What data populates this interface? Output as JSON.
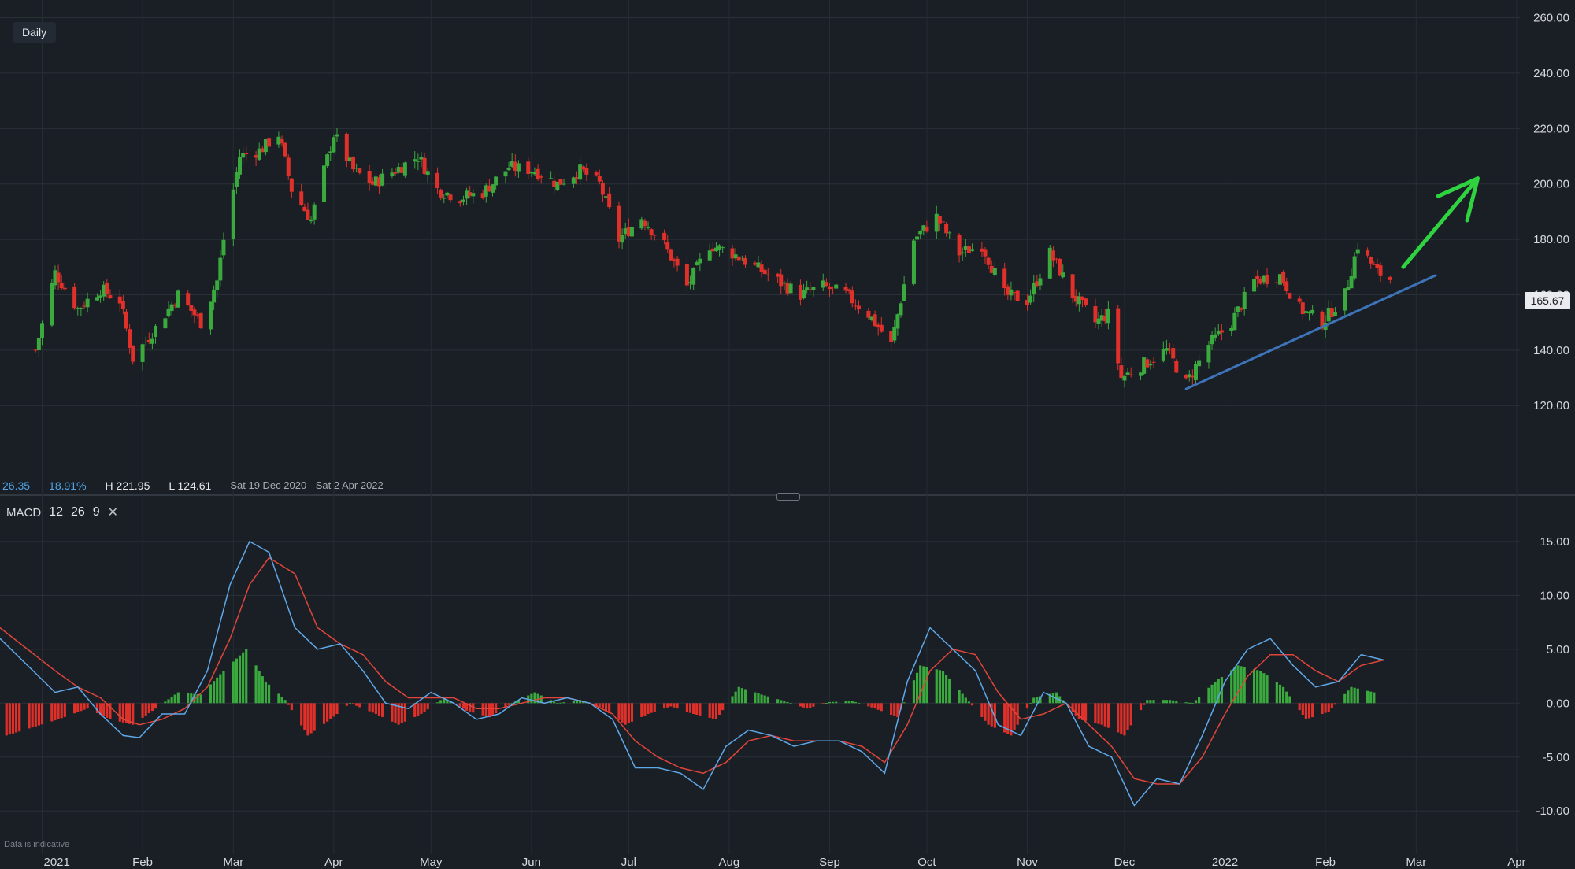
{
  "header": {
    "interval": "Daily"
  },
  "stats": {
    "value_a": "26.35",
    "value_pct": "18.91%",
    "high": "H 221.95",
    "low": "L 124.61",
    "range": "Sat 19 Dec 2020 - Sat 2 Apr 2022"
  },
  "macd_header": {
    "name": "MACD",
    "fast": "12",
    "slow": "26",
    "signal": "9",
    "close_glyph": "✕"
  },
  "footer_note": "Data is indicative",
  "last_price_label": "165.67",
  "chart_data": [
    {
      "type": "candlestick",
      "title": "",
      "interval": "Daily",
      "date_range": [
        "2020-12-19",
        "2022-04-02"
      ],
      "x_tick_labels": [
        "2021",
        "Feb",
        "Mar",
        "Apr",
        "May",
        "Jun",
        "Jul",
        "Aug",
        "Sep",
        "Oct",
        "Nov",
        "Dec",
        "2022",
        "Feb",
        "Mar",
        "Apr"
      ],
      "x_tick_dates": [
        "2021-01-01",
        "2021-02-01",
        "2021-03-01",
        "2021-04-01",
        "2021-05-01",
        "2021-06-01",
        "2021-07-01",
        "2021-08-01",
        "2021-09-01",
        "2021-10-01",
        "2021-11-01",
        "2021-12-01",
        "2022-01-01",
        "2022-02-01",
        "2022-03-01",
        "2022-04-01"
      ],
      "y_tick_labels": [
        "260.00",
        "240.00",
        "220.00",
        "200.00",
        "180.00",
        "160.00",
        "140.00",
        "120.00"
      ],
      "ylim": [
        105,
        263
      ],
      "close_path": [
        [
          "2020-12-30",
          140
        ],
        [
          "2021-01-05",
          168
        ],
        [
          "2021-01-12",
          155
        ],
        [
          "2021-01-19",
          162
        ],
        [
          "2021-01-25",
          158
        ],
        [
          "2021-01-29",
          137
        ],
        [
          "2021-02-05",
          148
        ],
        [
          "2021-02-12",
          160
        ],
        [
          "2021-02-19",
          150
        ],
        [
          "2021-02-24",
          165
        ],
        [
          "2021-02-26",
          180
        ],
        [
          "2021-03-03",
          210
        ],
        [
          "2021-03-09",
          212
        ],
        [
          "2021-03-15",
          218
        ],
        [
          "2021-03-19",
          198
        ],
        [
          "2021-03-25",
          187
        ],
        [
          "2021-04-01",
          218
        ],
        [
          "2021-04-07",
          205
        ],
        [
          "2021-04-13",
          200
        ],
        [
          "2021-04-20",
          205
        ],
        [
          "2021-04-27",
          210
        ],
        [
          "2021-05-03",
          198
        ],
        [
          "2021-05-10",
          195
        ],
        [
          "2021-05-17",
          197
        ],
        [
          "2021-05-25",
          206
        ],
        [
          "2021-06-02",
          205
        ],
        [
          "2021-06-09",
          200
        ],
        [
          "2021-06-16",
          205
        ],
        [
          "2021-06-22",
          200
        ],
        [
          "2021-06-28",
          180
        ],
        [
          "2021-07-05",
          188
        ],
        [
          "2021-07-12",
          178
        ],
        [
          "2021-07-19",
          163
        ],
        [
          "2021-07-26",
          178
        ],
        [
          "2021-08-02",
          175
        ],
        [
          "2021-08-09",
          170
        ],
        [
          "2021-08-16",
          165
        ],
        [
          "2021-08-23",
          160
        ],
        [
          "2021-08-30",
          163
        ],
        [
          "2021-09-06",
          160
        ],
        [
          "2021-09-13",
          153
        ],
        [
          "2021-09-20",
          142
        ],
        [
          "2021-09-27",
          180
        ],
        [
          "2021-10-04",
          188
        ],
        [
          "2021-10-11",
          175
        ],
        [
          "2021-10-18",
          178
        ],
        [
          "2021-10-25",
          160
        ],
        [
          "2021-11-01",
          158
        ],
        [
          "2021-11-08",
          175
        ],
        [
          "2021-11-15",
          160
        ],
        [
          "2021-11-22",
          150
        ],
        [
          "2021-11-26",
          153
        ],
        [
          "2021-11-30",
          130
        ],
        [
          "2021-12-07",
          135
        ],
        [
          "2021-12-14",
          140
        ],
        [
          "2021-12-20",
          128
        ],
        [
          "2021-12-27",
          142
        ],
        [
          "2022-01-03",
          150
        ],
        [
          "2022-01-10",
          165
        ],
        [
          "2022-01-18",
          167
        ],
        [
          "2022-01-24",
          155
        ],
        [
          "2022-01-31",
          150
        ],
        [
          "2022-02-07",
          160
        ],
        [
          "2022-02-11",
          178
        ],
        [
          "2022-02-17",
          168
        ],
        [
          "2022-02-21",
          165.67
        ]
      ],
      "high": 221.95,
      "low": 124.61,
      "last_price": 165.67,
      "colors": {
        "up": "#3aa93e",
        "down": "#e0302a",
        "background": "#1a1f26"
      },
      "annotations": [
        {
          "type": "trendline",
          "from": [
            "2021-12-20",
            126
          ],
          "to": [
            "2022-03-07",
            167
          ],
          "color": "#3d73b8"
        },
        {
          "type": "arrow",
          "from": [
            "2022-02-25",
            170
          ],
          "to": [
            "2022-03-20",
            202
          ],
          "color": "#2fd33f"
        },
        {
          "type": "price_line",
          "value": 165.67
        }
      ]
    },
    {
      "type": "macd",
      "params": [
        12,
        26,
        9
      ],
      "y_tick_labels": [
        "15.00",
        "10.00",
        "5.00",
        "0.00",
        "-5.00",
        "-10.00"
      ],
      "ylim": [
        -14,
        18.5
      ],
      "macd_line": [
        [
          "2020-12-19",
          6
        ],
        [
          "2021-01-05",
          1
        ],
        [
          "2021-01-12",
          1.5
        ],
        [
          "2021-01-19",
          -1
        ],
        [
          "2021-01-26",
          -3
        ],
        [
          "2021-01-31",
          -3.2
        ],
        [
          "2021-02-07",
          -1
        ],
        [
          "2021-02-14",
          -1
        ],
        [
          "2021-02-21",
          3
        ],
        [
          "2021-02-28",
          11
        ],
        [
          "2021-03-06",
          15
        ],
        [
          "2021-03-12",
          14
        ],
        [
          "2021-03-20",
          7
        ],
        [
          "2021-03-27",
          5
        ],
        [
          "2021-04-03",
          5.5
        ],
        [
          "2021-04-10",
          3
        ],
        [
          "2021-04-17",
          0
        ],
        [
          "2021-04-24",
          -0.5
        ],
        [
          "2021-05-01",
          1
        ],
        [
          "2021-05-08",
          0
        ],
        [
          "2021-05-15",
          -1.5
        ],
        [
          "2021-05-22",
          -1
        ],
        [
          "2021-05-29",
          0.5
        ],
        [
          "2021-06-05",
          0
        ],
        [
          "2021-06-12",
          0.5
        ],
        [
          "2021-06-19",
          0
        ],
        [
          "2021-06-26",
          -1.5
        ],
        [
          "2021-07-03",
          -6
        ],
        [
          "2021-07-10",
          -6
        ],
        [
          "2021-07-17",
          -6.5
        ],
        [
          "2021-07-24",
          -8
        ],
        [
          "2021-07-31",
          -4
        ],
        [
          "2021-08-07",
          -2.5
        ],
        [
          "2021-08-14",
          -3
        ],
        [
          "2021-08-21",
          -4
        ],
        [
          "2021-08-28",
          -3.5
        ],
        [
          "2021-09-04",
          -3.5
        ],
        [
          "2021-09-11",
          -4.5
        ],
        [
          "2021-09-18",
          -6.5
        ],
        [
          "2021-09-25",
          2
        ],
        [
          "2021-10-02",
          7
        ],
        [
          "2021-10-09",
          5
        ],
        [
          "2021-10-16",
          3
        ],
        [
          "2021-10-23",
          -2
        ],
        [
          "2021-10-30",
          -3
        ],
        [
          "2021-11-06",
          1
        ],
        [
          "2021-11-13",
          0
        ],
        [
          "2021-11-20",
          -4
        ],
        [
          "2021-11-27",
          -5
        ],
        [
          "2021-12-04",
          -9.5
        ],
        [
          "2021-12-11",
          -7
        ],
        [
          "2021-12-18",
          -7.5
        ],
        [
          "2021-12-25",
          -3
        ],
        [
          "2022-01-01",
          2
        ],
        [
          "2022-01-08",
          5
        ],
        [
          "2022-01-15",
          6
        ],
        [
          "2022-01-22",
          3.5
        ],
        [
          "2022-01-29",
          1.5
        ],
        [
          "2022-02-05",
          2
        ],
        [
          "2022-02-12",
          4.5
        ],
        [
          "2022-02-19",
          4
        ]
      ],
      "signal_line": [
        [
          "2020-12-19",
          7
        ],
        [
          "2021-01-05",
          3
        ],
        [
          "2021-01-12",
          1.5
        ],
        [
          "2021-01-19",
          0.5
        ],
        [
          "2021-01-26",
          -1.5
        ],
        [
          "2021-01-31",
          -2
        ],
        [
          "2021-02-07",
          -1.5
        ],
        [
          "2021-02-14",
          -0.5
        ],
        [
          "2021-02-21",
          1.5
        ],
        [
          "2021-02-28",
          6
        ],
        [
          "2021-03-06",
          11
        ],
        [
          "2021-03-12",
          13.5
        ],
        [
          "2021-03-20",
          12
        ],
        [
          "2021-03-27",
          7
        ],
        [
          "2021-04-03",
          5.5
        ],
        [
          "2021-04-10",
          4.5
        ],
        [
          "2021-04-17",
          2
        ],
        [
          "2021-04-24",
          0.5
        ],
        [
          "2021-05-01",
          0.5
        ],
        [
          "2021-05-08",
          0.5
        ],
        [
          "2021-05-15",
          -0.5
        ],
        [
          "2021-05-22",
          -0.5
        ],
        [
          "2021-05-29",
          0
        ],
        [
          "2021-06-05",
          0.5
        ],
        [
          "2021-06-12",
          0.5
        ],
        [
          "2021-06-19",
          0
        ],
        [
          "2021-06-26",
          -1
        ],
        [
          "2021-07-03",
          -3.5
        ],
        [
          "2021-07-10",
          -5
        ],
        [
          "2021-07-17",
          -6
        ],
        [
          "2021-07-24",
          -6.5
        ],
        [
          "2021-07-31",
          -5.5
        ],
        [
          "2021-08-07",
          -3.5
        ],
        [
          "2021-08-14",
          -3
        ],
        [
          "2021-08-21",
          -3.5
        ],
        [
          "2021-08-28",
          -3.5
        ],
        [
          "2021-09-04",
          -3.5
        ],
        [
          "2021-09-11",
          -4
        ],
        [
          "2021-09-18",
          -5.5
        ],
        [
          "2021-09-25",
          -2
        ],
        [
          "2021-10-02",
          3
        ],
        [
          "2021-10-09",
          5
        ],
        [
          "2021-10-16",
          4.5
        ],
        [
          "2021-10-23",
          1
        ],
        [
          "2021-10-30",
          -1.5
        ],
        [
          "2021-11-06",
          -1
        ],
        [
          "2021-11-13",
          0
        ],
        [
          "2021-11-20",
          -2
        ],
        [
          "2021-11-27",
          -4
        ],
        [
          "2021-12-04",
          -7
        ],
        [
          "2021-12-11",
          -7.5
        ],
        [
          "2021-12-18",
          -7.5
        ],
        [
          "2021-12-25",
          -5
        ],
        [
          "2022-01-01",
          -1
        ],
        [
          "2022-01-08",
          2.5
        ],
        [
          "2022-01-15",
          4.5
        ],
        [
          "2022-01-22",
          4.5
        ],
        [
          "2022-01-29",
          3
        ],
        [
          "2022-02-05",
          2
        ],
        [
          "2022-02-12",
          3.5
        ],
        [
          "2022-02-19",
          4
        ]
      ],
      "histogram_path": [
        [
          "2020-12-21",
          -3
        ],
        [
          "2021-01-06",
          -1.5
        ],
        [
          "2021-01-15",
          -0.5
        ],
        [
          "2021-01-22",
          -1.5
        ],
        [
          "2021-01-29",
          -2
        ],
        [
          "2021-02-05",
          -0.5
        ],
        [
          "2021-02-12",
          1
        ],
        [
          "2021-02-19",
          0.8
        ],
        [
          "2021-02-26",
          3
        ],
        [
          "2021-03-05",
          5
        ],
        [
          "2021-03-11",
          2
        ],
        [
          "2021-03-17",
          0.3
        ],
        [
          "2021-03-24",
          -3
        ],
        [
          "2021-03-31",
          -1.5
        ],
        [
          "2021-04-06",
          0
        ],
        [
          "2021-04-14",
          -1
        ],
        [
          "2021-04-21",
          -2
        ],
        [
          "2021-04-28",
          -1
        ],
        [
          "2021-05-05",
          0.5
        ],
        [
          "2021-05-12",
          -0.7
        ],
        [
          "2021-05-19",
          -1.3
        ],
        [
          "2021-05-26",
          0
        ],
        [
          "2021-06-02",
          1
        ],
        [
          "2021-06-09",
          0
        ],
        [
          "2021-06-16",
          0.3
        ],
        [
          "2021-06-23",
          -0.5
        ],
        [
          "2021-06-30",
          -2
        ],
        [
          "2021-07-07",
          -1
        ],
        [
          "2021-07-14",
          -0.3
        ],
        [
          "2021-07-21",
          -1
        ],
        [
          "2021-07-28",
          -1.5
        ],
        [
          "2021-08-04",
          1.5
        ],
        [
          "2021-08-11",
          0.8
        ],
        [
          "2021-08-18",
          0.2
        ],
        [
          "2021-08-25",
          -0.5
        ],
        [
          "2021-09-01",
          0.1
        ],
        [
          "2021-09-08",
          0.2
        ],
        [
          "2021-09-15",
          -0.5
        ],
        [
          "2021-09-22",
          -1.3
        ],
        [
          "2021-09-29",
          3.5
        ],
        [
          "2021-10-06",
          3
        ],
        [
          "2021-10-13",
          0.5
        ],
        [
          "2021-10-20",
          -2
        ],
        [
          "2021-10-27",
          -3
        ],
        [
          "2021-11-03",
          0.5
        ],
        [
          "2021-11-10",
          1
        ],
        [
          "2021-11-17",
          -1.5
        ],
        [
          "2021-11-24",
          -2
        ],
        [
          "2021-12-01",
          -3
        ],
        [
          "2021-12-08",
          0.3
        ],
        [
          "2021-12-15",
          0.3
        ],
        [
          "2021-12-22",
          0
        ],
        [
          "2021-12-29",
          2
        ],
        [
          "2022-01-05",
          3.5
        ],
        [
          "2022-01-12",
          3
        ],
        [
          "2022-01-19",
          1.5
        ],
        [
          "2022-01-26",
          -1.5
        ],
        [
          "2022-02-02",
          -0.8
        ],
        [
          "2022-02-09",
          1.5
        ],
        [
          "2022-02-16",
          1
        ]
      ],
      "colors": {
        "macd": "#5fa8e8",
        "signal": "#e0453a",
        "hist_up": "#3aa93e",
        "hist_down": "#e0302a"
      }
    }
  ]
}
